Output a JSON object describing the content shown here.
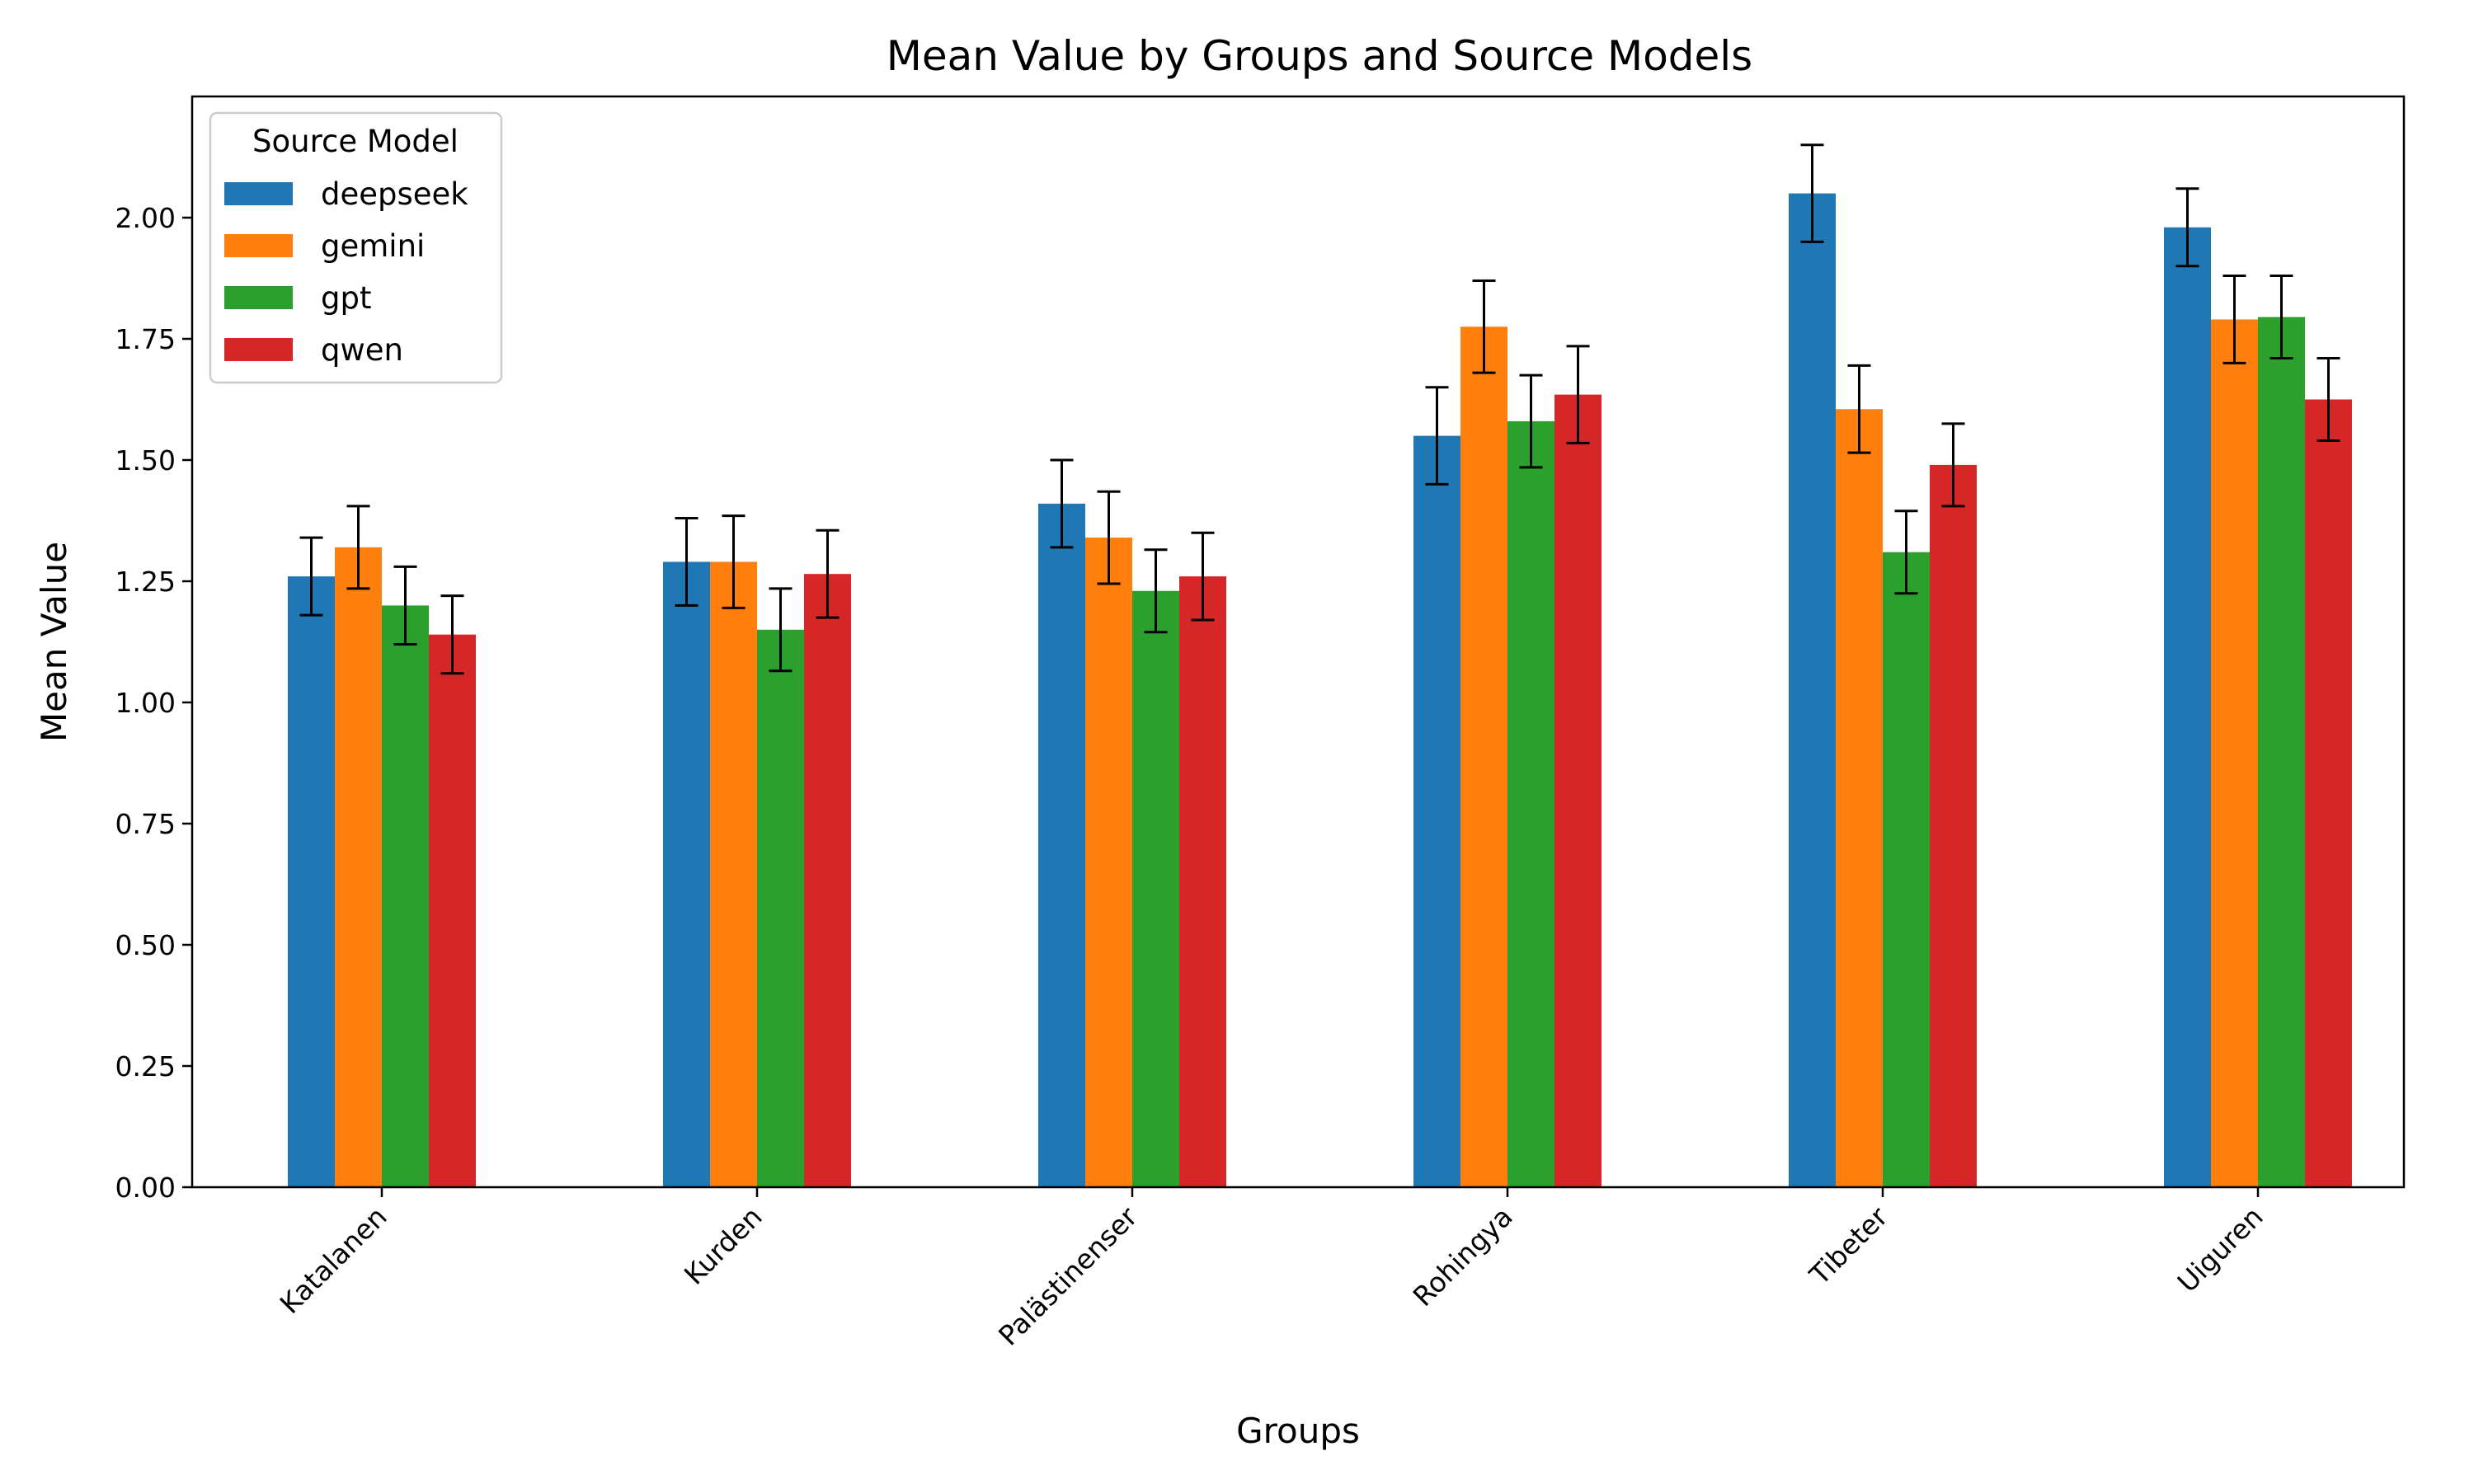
{
  "chart_data": {
    "type": "bar",
    "title": "Mean Value by Groups and Source Models",
    "xlabel": "Groups",
    "ylabel": "Mean Value",
    "ylim": [
      0,
      2.25
    ],
    "yticks": [
      "0.00",
      "0.25",
      "0.50",
      "0.75",
      "1.00",
      "1.25",
      "1.50",
      "1.75",
      "2.00"
    ],
    "categories": [
      "Katalanen",
      "Kurden",
      "Palästinenser",
      "Rohingya",
      "Tibeter",
      "Uiguren"
    ],
    "legend": {
      "title": "Source Model",
      "placement": "top-left"
    },
    "grid": false,
    "series": [
      {
        "name": "deepseek",
        "color": "#1f77b4",
        "values": [
          1.26,
          1.29,
          1.41,
          1.55,
          2.05,
          1.98
        ],
        "errors": [
          0.08,
          0.09,
          0.09,
          0.1,
          0.1,
          0.08
        ]
      },
      {
        "name": "gemini",
        "color": "#ff7f0e",
        "values": [
          1.32,
          1.29,
          1.34,
          1.775,
          1.605,
          1.79
        ],
        "errors": [
          0.085,
          0.095,
          0.095,
          0.095,
          0.09,
          0.09
        ]
      },
      {
        "name": "gpt",
        "color": "#2ca02c",
        "values": [
          1.2,
          1.15,
          1.23,
          1.58,
          1.31,
          1.795
        ],
        "errors": [
          0.08,
          0.085,
          0.085,
          0.095,
          0.085,
          0.085
        ]
      },
      {
        "name": "qwen",
        "color": "#d62728",
        "values": [
          1.14,
          1.265,
          1.26,
          1.635,
          1.49,
          1.625
        ],
        "errors": [
          0.08,
          0.09,
          0.09,
          0.1,
          0.085,
          0.085
        ]
      }
    ]
  }
}
